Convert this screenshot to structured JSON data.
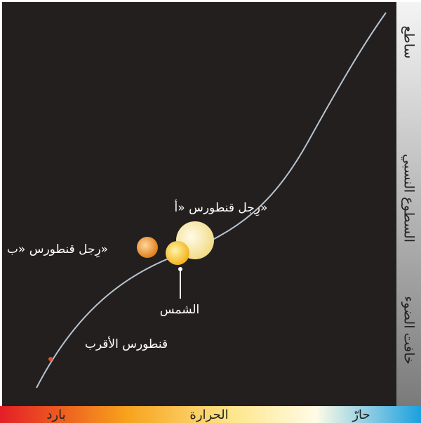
{
  "y_axis": {
    "top": "ساطع",
    "title": "السطوع النسبي",
    "bottom": "خافت الضوء"
  },
  "x_axis": {
    "left": "بارد",
    "title": "الحرارة",
    "right": "حارّ"
  },
  "stars": [
    {
      "label": "رِجل قنطورس «أ»"
    },
    {
      "label": "رِجل قنطورس «ب»"
    },
    {
      "label": "الشمس"
    },
    {
      "label": "قنطورس الأقرب"
    }
  ]
}
